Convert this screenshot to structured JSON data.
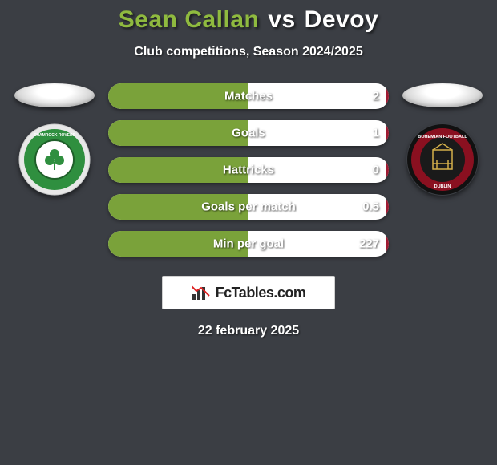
{
  "title": {
    "player1": "Sean Callan",
    "vs": "vs",
    "player2": "Devoy",
    "player1_color": "#8fba3f",
    "player2_color": "#ffffff"
  },
  "subtitle": "Club competitions, Season 2024/2025",
  "colors": {
    "background": "#3b3e44",
    "left_fill": "#7aa23a",
    "right_fill": "#9e1b32",
    "bar_bg": "#ffffff"
  },
  "crests": {
    "left": {
      "name": "shamrock-rovers",
      "outer": "#e8e8e8",
      "ring": "#2f8f3f",
      "ring_dark": "#1f5f2a",
      "center": "#ffffff"
    },
    "right": {
      "name": "bohemians",
      "outer": "#111111",
      "ring": "#8a1020",
      "center": "#1a1a1a"
    }
  },
  "stats": [
    {
      "label": "Matches",
      "left_value": "",
      "right_value": "2",
      "left_fill_pct": 50,
      "right_fill_pct": 1
    },
    {
      "label": "Goals",
      "left_value": "",
      "right_value": "1",
      "left_fill_pct": 50,
      "right_fill_pct": 1
    },
    {
      "label": "Hattricks",
      "left_value": "",
      "right_value": "0",
      "left_fill_pct": 50,
      "right_fill_pct": 1
    },
    {
      "label": "Goals per match",
      "left_value": "",
      "right_value": "0.5",
      "left_fill_pct": 50,
      "right_fill_pct": 1
    },
    {
      "label": "Min per goal",
      "left_value": "",
      "right_value": "227",
      "left_fill_pct": 50,
      "right_fill_pct": 1
    }
  ],
  "brand": "FcTables.com",
  "date": "22 february 2025"
}
